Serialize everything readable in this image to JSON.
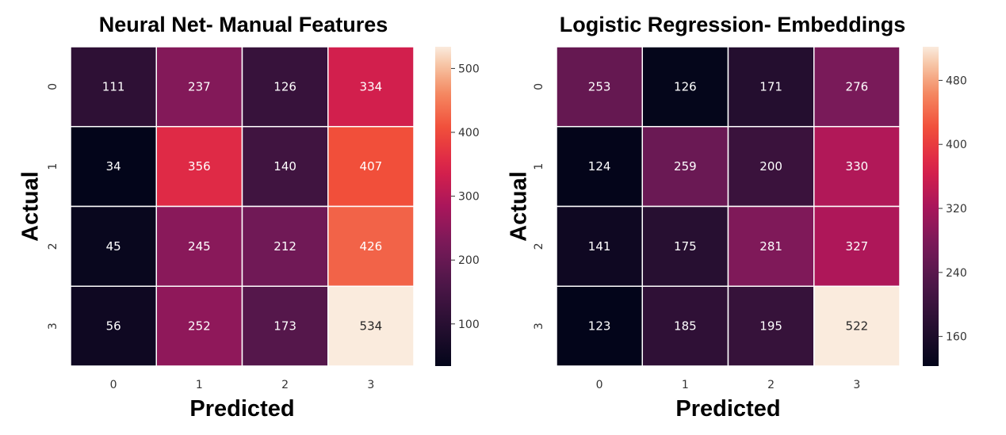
{
  "chart_data": [
    {
      "type": "heatmap",
      "title": "Neural Net- Manual Features",
      "xlabel": "Predicted",
      "ylabel": "Actual",
      "x_categories": [
        "0",
        "1",
        "2",
        "3"
      ],
      "y_categories": [
        "0",
        "1",
        "2",
        "3"
      ],
      "values": [
        [
          111,
          237,
          126,
          334
        ],
        [
          34,
          356,
          140,
          407
        ],
        [
          45,
          245,
          212,
          426
        ],
        [
          56,
          252,
          173,
          534
        ]
      ],
      "colormap": "rocket",
      "colorbar": {
        "range": [
          34,
          534
        ],
        "ticks": [
          100,
          200,
          300,
          400,
          500
        ]
      },
      "grid": true
    },
    {
      "type": "heatmap",
      "title": "Logistic Regression- Embeddings",
      "xlabel": "Predicted",
      "ylabel": "Actual",
      "x_categories": [
        "0",
        "1",
        "2",
        "3"
      ],
      "y_categories": [
        "0",
        "1",
        "2",
        "3"
      ],
      "values": [
        [
          253,
          126,
          171,
          276
        ],
        [
          124,
          259,
          200,
          330
        ],
        [
          141,
          175,
          281,
          327
        ],
        [
          123,
          185,
          195,
          522
        ]
      ],
      "colormap": "rocket",
      "colorbar": {
        "range": [
          123,
          522
        ],
        "ticks": [
          160,
          240,
          320,
          400,
          480
        ]
      },
      "grid": true
    }
  ]
}
